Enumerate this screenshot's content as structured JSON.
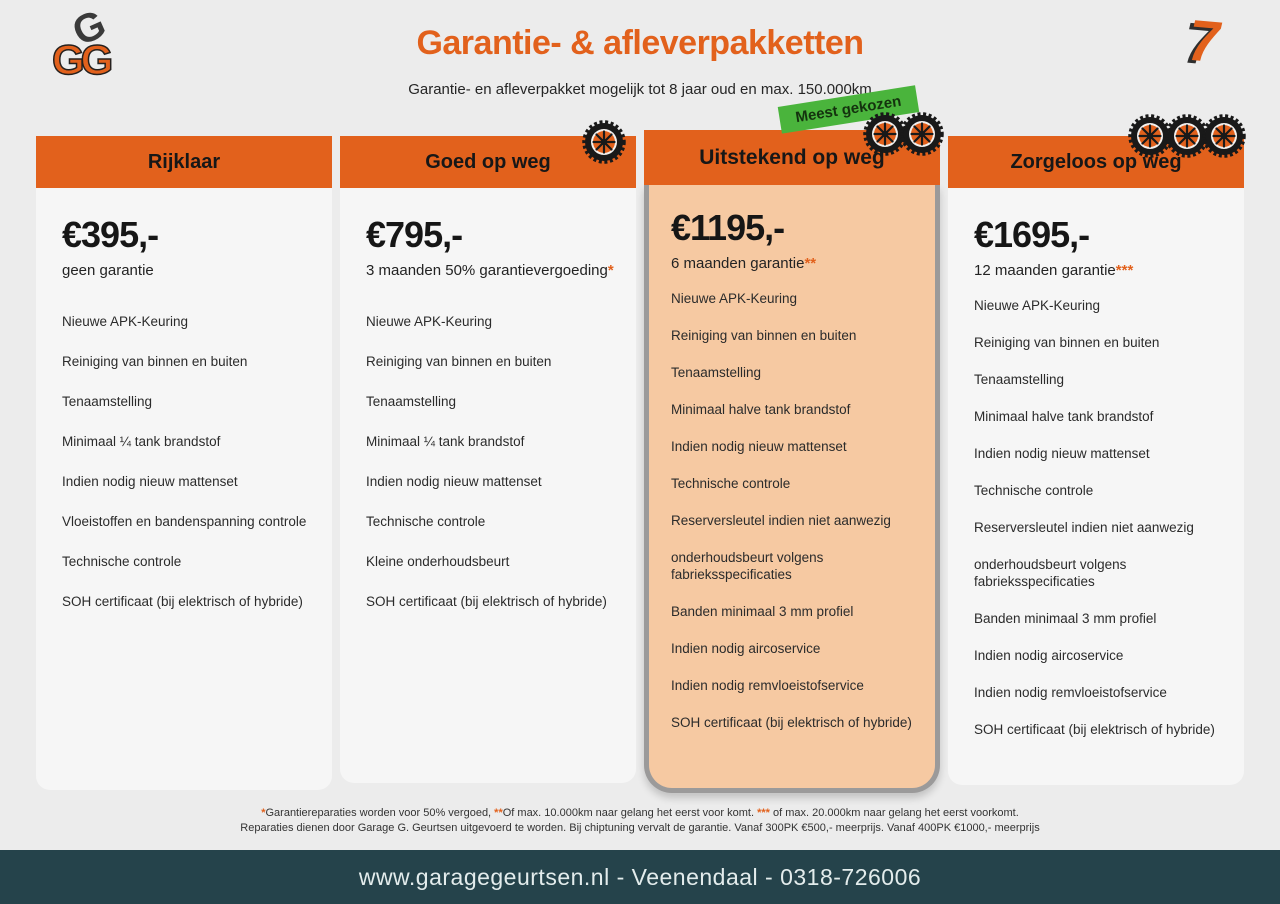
{
  "header": {
    "logo_top": "G",
    "logo_bottom": "GG",
    "title": "Garantie- & afleverpakketten",
    "subtitle": "Garantie- en afleverpakket mogelijk tot 8 jaar oud en max. 150.000km",
    "corner_logo": "7"
  },
  "packages": [
    {
      "name": "Rijklaar",
      "price": "€395,-",
      "warranty": "geen garantie",
      "warranty_asterisks": "",
      "tires": 0,
      "highlighted": false,
      "items": [
        "Nieuwe APK-Keuring",
        "Reiniging van binnen en buiten",
        "Tenaamstelling",
        "Minimaal ¼  tank brandstof",
        "Indien nodig nieuw mattenset",
        "Vloeistoffen en bandenspanning controle",
        "Technische controle",
        "SOH certificaat (bij elektrisch of hybride)"
      ]
    },
    {
      "name": "Goed op weg",
      "price": "€795,-",
      "warranty": "3 maanden 50% garantievergoeding",
      "warranty_asterisks": "*",
      "tires": 1,
      "highlighted": false,
      "items": [
        "Nieuwe APK-Keuring",
        "Reiniging van binnen en buiten",
        "Tenaamstelling",
        "Minimaal ¼ tank brandstof",
        "Indien nodig nieuw mattenset",
        "Technische controle",
        "Kleine onderhoudsbeurt",
        "SOH certificaat (bij elektrisch of hybride)"
      ]
    },
    {
      "name": "Uitstekend op weg",
      "price": "€1195,-",
      "warranty": "6 maanden garantie",
      "warranty_asterisks": "**",
      "tires": 2,
      "highlighted": true,
      "badge": "Meest gekozen",
      "items": [
        "Nieuwe APK-Keuring",
        "Reiniging van binnen en buiten",
        "Tenaamstelling",
        "Minimaal halve tank brandstof",
        "Indien nodig nieuw mattenset",
        "Technische controle",
        "Reserversleutel indien niet aanwezig",
        "onderhoudsbeurt volgens fabrieksspecificaties",
        "Banden minimaal 3 mm profiel",
        "Indien nodig aircoservice",
        "Indien nodig remvloeistofservice",
        "SOH certificaat (bij elektrisch of hybride)"
      ]
    },
    {
      "name": "Zorgeloos op weg",
      "price": "€1695,-",
      "warranty": "12 maanden garantie",
      "warranty_asterisks": "***",
      "tires": 3,
      "highlighted": false,
      "items": [
        "Nieuwe APK-Keuring",
        "Reiniging van binnen en buiten",
        "Tenaamstelling",
        "Minimaal halve tank brandstof",
        "Indien nodig nieuw mattenset",
        "Technische controle",
        "Reserversleutel indien niet aanwezig",
        "onderhoudsbeurt volgens fabrieksspecificaties",
        "Banden minimaal 3 mm profiel",
        "Indien nodig aircoservice",
        "Indien nodig remvloeistofservice",
        "SOH certificaat (bij elektrisch of hybride)"
      ]
    }
  ],
  "footnotes": {
    "f1_ast": "*",
    "f1_text": "Garantiereparaties worden voor 50% vergoed, ",
    "f2_ast": "**",
    "f2_text": "Of max. 10.000km naar gelang het eerst voor komt. ",
    "f3_ast": "***",
    "f3_text": " of max. 20.000km naar gelang het eerst voorkomt.",
    "line2": "Reparaties dienen door Garage G. Geurtsen uitgevoerd te worden. Bij chiptuning vervalt de garantie. Vanaf 300PK €500,- meerprijs. Vanaf 400PK €1000,- meerprijs"
  },
  "footer": {
    "text": "www.garagegeurtsen.nl - Veenendaal - 0318-726006"
  },
  "colors": {
    "orange": "#E2611C",
    "peach": "#F6C9A2",
    "badge_green": "#4AB43C",
    "footer_bg": "#25434B",
    "page_bg": "#ECECEC"
  }
}
